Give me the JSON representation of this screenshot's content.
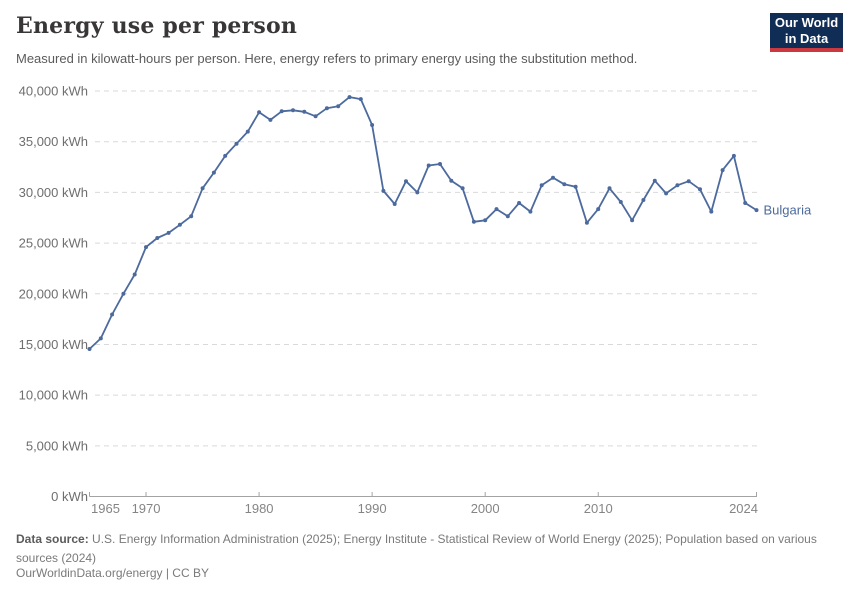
{
  "header": {
    "title": "Energy use per person",
    "subtitle": "Measured in kilowatt-hours per person. Here, energy refers to primary energy using the substitution method."
  },
  "logo": {
    "line1": "Our World",
    "line2": "in Data",
    "bg_color": "#0f2d55",
    "accent_color": "#c9393f"
  },
  "chart_data": {
    "type": "line",
    "title": "Energy use per person",
    "unit": "kWh",
    "xlabel": "",
    "ylabel": "",
    "xlim": [
      1965,
      2024
    ],
    "ylim": [
      0,
      40000
    ],
    "grid": true,
    "legend_position": "end-of-line-label",
    "xticks": [
      1965,
      1970,
      1980,
      1990,
      2000,
      2010,
      2024
    ],
    "xtick_labels": [
      "1965",
      "1970",
      "1980",
      "1990",
      "2000",
      "2010",
      "2024"
    ],
    "yticks": [
      0,
      5000,
      10000,
      15000,
      20000,
      25000,
      30000,
      35000,
      40000
    ],
    "ytick_labels": [
      "0 kWh",
      "5,000 kWh",
      "10,000 kWh",
      "15,000 kWh",
      "20,000 kWh",
      "25,000 kWh",
      "30,000 kWh",
      "35,000 kWh",
      "40,000 kWh"
    ],
    "x": [
      1965,
      1966,
      1967,
      1968,
      1969,
      1970,
      1971,
      1972,
      1973,
      1974,
      1975,
      1976,
      1977,
      1978,
      1979,
      1980,
      1981,
      1982,
      1983,
      1984,
      1985,
      1986,
      1987,
      1988,
      1989,
      1990,
      1991,
      1992,
      1993,
      1994,
      1995,
      1996,
      1997,
      1998,
      1999,
      2000,
      2001,
      2002,
      2003,
      2004,
      2005,
      2006,
      2007,
      2008,
      2009,
      2010,
      2011,
      2012,
      2013,
      2014,
      2015,
      2016,
      2017,
      2018,
      2019,
      2020,
      2021,
      2022,
      2023,
      2024
    ],
    "series": [
      {
        "name": "Bulgaria",
        "color": "#4C6A9D",
        "values": [
          14550,
          15600,
          17950,
          20000,
          21900,
          24600,
          25500,
          26000,
          26800,
          27650,
          30400,
          31950,
          33600,
          34800,
          36000,
          37900,
          37150,
          38000,
          38100,
          37950,
          37500,
          38300,
          38500,
          39400,
          39200,
          36650,
          30150,
          28850,
          31100,
          30000,
          32650,
          32800,
          31150,
          30400,
          27100,
          27250,
          28350,
          27650,
          28950,
          28100,
          30700,
          31450,
          30800,
          30550,
          27000,
          28350,
          30400,
          29050,
          27250,
          29250,
          31150,
          29900,
          30700,
          31100,
          30300,
          28100,
          32200,
          33600,
          28950,
          28250
        ]
      }
    ],
    "colors": {
      "grid": "#d9d9d9",
      "axis": "#a3a3a3",
      "ytick_text": "#6e6e6e",
      "xtick_text": "#858585"
    }
  },
  "footer": {
    "source_label": "Data source:",
    "source_text": "U.S. Energy Information Administration (2025); Energy Institute - Statistical Review of World Energy (2025); Population based on various sources (2024)",
    "credit": "OurWorldinData.org/energy | CC BY"
  }
}
